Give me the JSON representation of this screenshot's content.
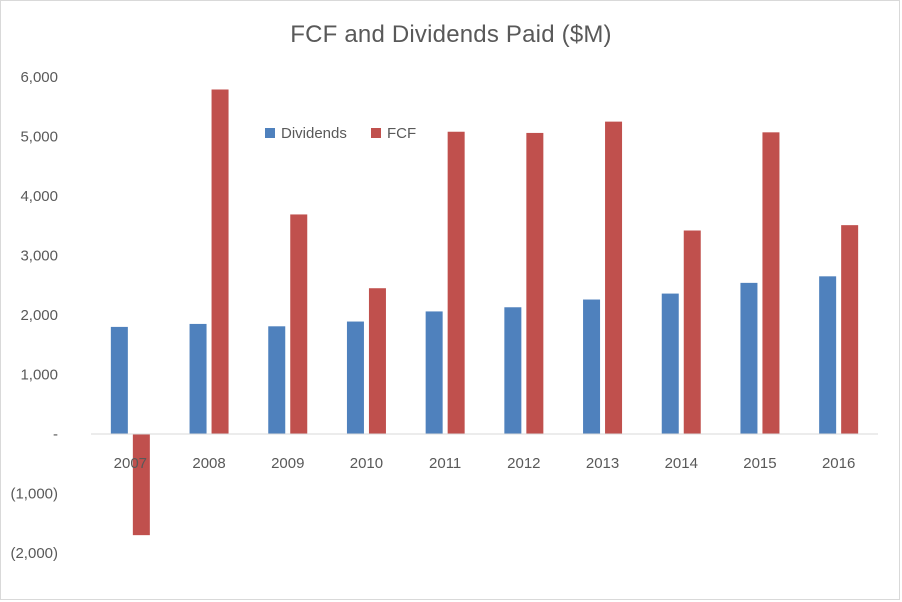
{
  "chart_data": {
    "type": "bar",
    "title": "FCF and Dividends Paid ($M)",
    "xlabel": "",
    "ylabel": "",
    "categories": [
      "2007",
      "2008",
      "2009",
      "2010",
      "2011",
      "2012",
      "2013",
      "2014",
      "2015",
      "2016"
    ],
    "series": [
      {
        "name": "Dividends",
        "color": "#4F81BD",
        "values": [
          1800,
          1850,
          1810,
          1890,
          2060,
          2130,
          2260,
          2360,
          2540,
          2650
        ]
      },
      {
        "name": "FCF",
        "color": "#C0504D",
        "values": [
          -1700,
          5790,
          3690,
          2450,
          5080,
          5060,
          5250,
          3420,
          5070,
          3510
        ]
      }
    ],
    "ylim": [
      -2000,
      6000
    ],
    "yticks": [
      6000,
      5000,
      4000,
      3000,
      2000,
      1000,
      0,
      -1000,
      -2000
    ],
    "ytick_labels": [
      "6,000",
      "5,000",
      "4,000",
      "3,000",
      "2,000",
      "1,000",
      "-",
      "(1,000)",
      "(2,000)"
    ],
    "grid": false,
    "legend": "top-center"
  }
}
